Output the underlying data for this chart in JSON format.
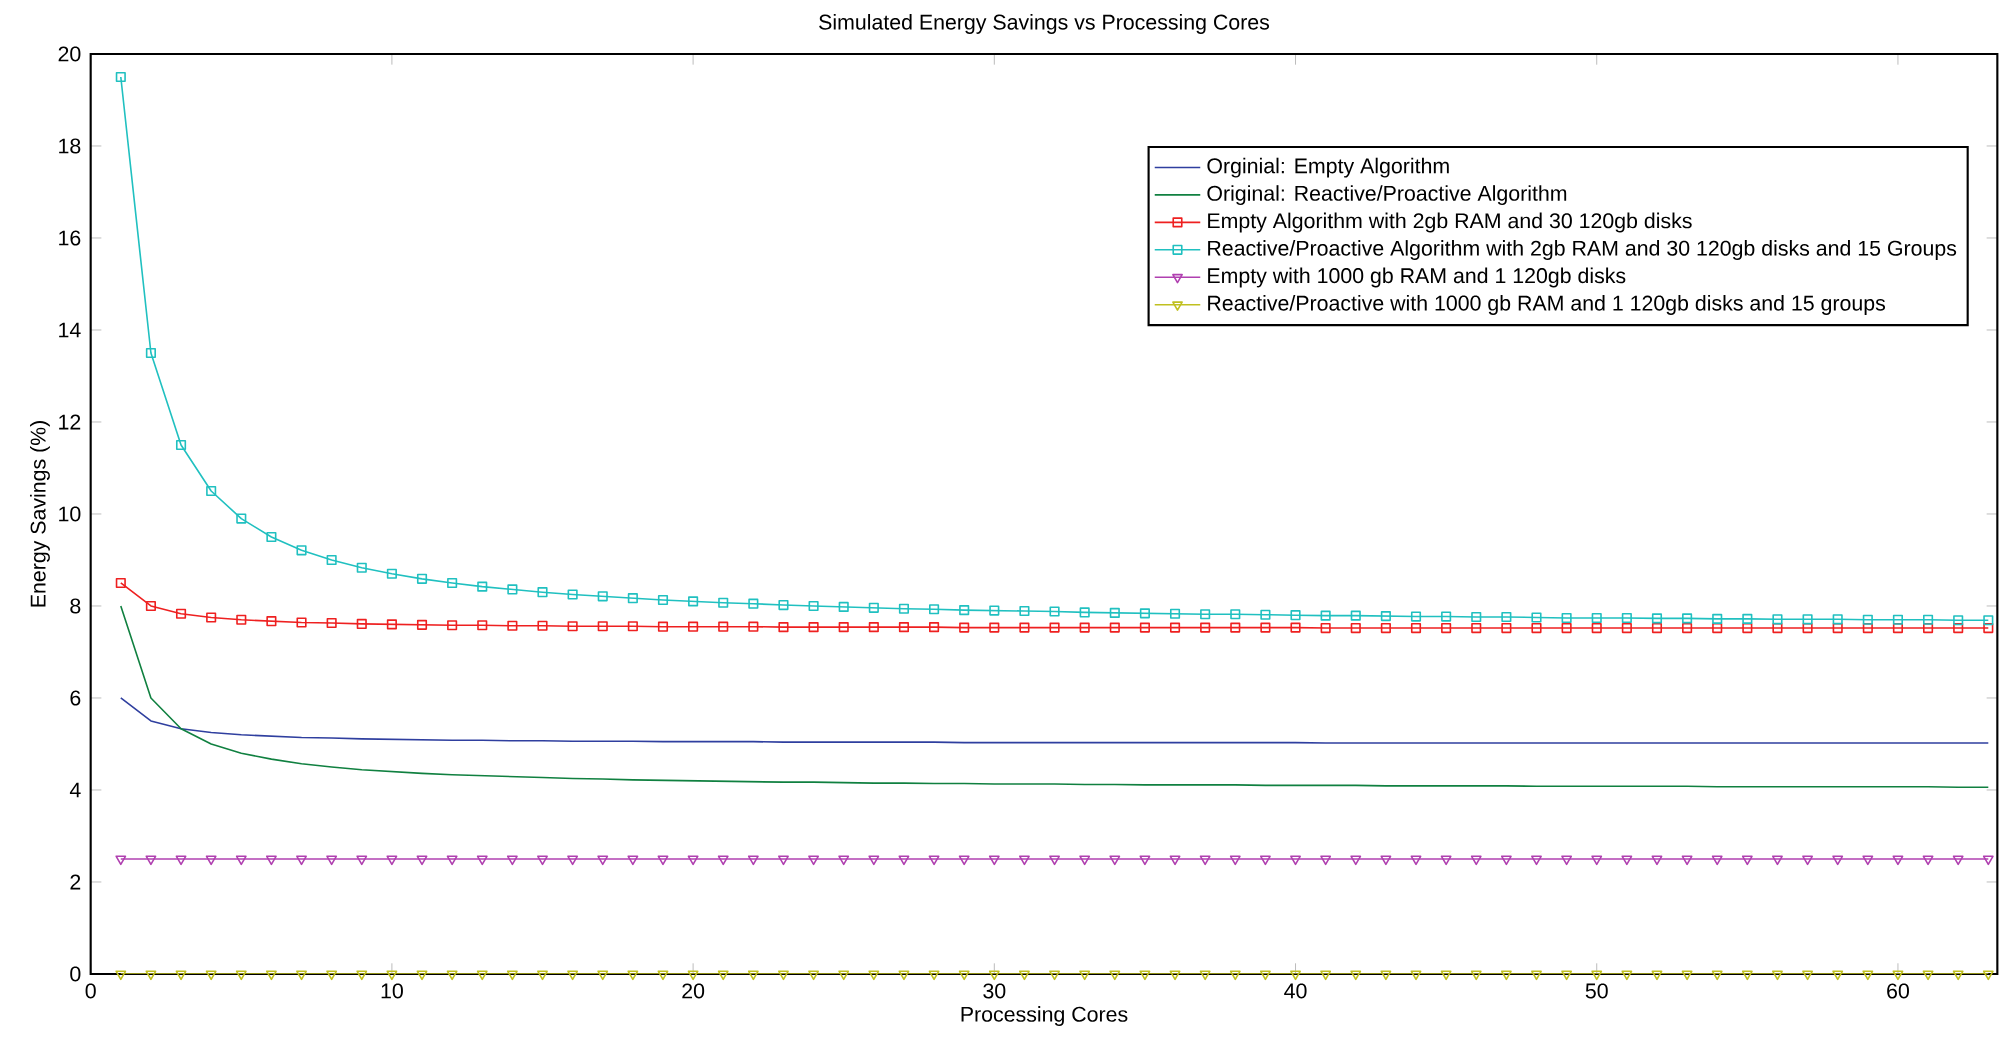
{
  "chart_data": {
    "type": "line",
    "title": "Simulated Energy Savings vs Processing Cores",
    "xlabel": "Processing Cores",
    "ylabel": "Energy Savings (%)",
    "x": [
      1,
      2,
      3,
      4,
      5,
      6,
      7,
      8,
      9,
      10,
      11,
      12,
      13,
      14,
      15,
      16,
      17,
      18,
      19,
      20,
      21,
      22,
      23,
      24,
      25,
      26,
      27,
      28,
      29,
      30,
      31,
      32,
      33,
      34,
      35,
      36,
      37,
      38,
      39,
      40,
      41,
      42,
      43,
      44,
      45,
      46,
      47,
      48,
      49,
      50,
      51,
      52,
      53,
      54,
      55,
      56,
      57,
      58,
      59,
      60,
      61,
      62,
      63
    ],
    "xlim": [
      0,
      63.3
    ],
    "xticks": [
      0,
      10,
      20,
      30,
      40,
      50,
      60
    ],
    "ylim": [
      0,
      20
    ],
    "yticks": [
      0,
      2,
      4,
      6,
      8,
      10,
      12,
      14,
      16,
      18,
      20
    ],
    "grid": false,
    "legend": "top right",
    "series": [
      {
        "name": "Orginial: Empty Algorithm",
        "color": "#2f3f9f",
        "marker": "none",
        "values": [
          6,
          5.5,
          5.33,
          5.25,
          5.2,
          5.17,
          5.14,
          5.13,
          5.11,
          5.1,
          5.09,
          5.08,
          5.08,
          5.07,
          5.07,
          5.06,
          5.06,
          5.06,
          5.05,
          5.05,
          5.05,
          5.05,
          5.04,
          5.04,
          5.04,
          5.04,
          5.04,
          5.04,
          5.03,
          5.03,
          5.03,
          5.03,
          5.03,
          5.03,
          5.03,
          5.03,
          5.03,
          5.03,
          5.03,
          5.03,
          5.02,
          5.02,
          5.02,
          5.02,
          5.02,
          5.02,
          5.02,
          5.02,
          5.02,
          5.02,
          5.02,
          5.02,
          5.02,
          5.02,
          5.02,
          5.02,
          5.02,
          5.02,
          5.02,
          5.02,
          5.02,
          5.02,
          5.02
        ]
      },
      {
        "name": "Original: Reactive/Proactive Algorithm",
        "color": "#108040",
        "marker": "none",
        "values": [
          8,
          6,
          5.33,
          5,
          4.8,
          4.67,
          4.57,
          4.5,
          4.44,
          4.4,
          4.36,
          4.33,
          4.31,
          4.29,
          4.27,
          4.25,
          4.24,
          4.22,
          4.21,
          4.2,
          4.19,
          4.18,
          4.17,
          4.17,
          4.16,
          4.15,
          4.15,
          4.14,
          4.14,
          4.13,
          4.13,
          4.13,
          4.12,
          4.12,
          4.11,
          4.11,
          4.11,
          4.11,
          4.1,
          4.1,
          4.1,
          4.1,
          4.09,
          4.09,
          4.09,
          4.09,
          4.09,
          4.08,
          4.08,
          4.08,
          4.08,
          4.08,
          4.08,
          4.07,
          4.07,
          4.07,
          4.07,
          4.07,
          4.07,
          4.07,
          4.07,
          4.06,
          4.06
        ]
      },
      {
        "name": "Empty Algorithm with 2gb RAM and 30 120gb disks",
        "color": "#ee2020",
        "marker": "square",
        "values": [
          8.5,
          8.0,
          7.83,
          7.75,
          7.7,
          7.67,
          7.64,
          7.63,
          7.61,
          7.6,
          7.59,
          7.58,
          7.58,
          7.57,
          7.57,
          7.56,
          7.56,
          7.56,
          7.55,
          7.55,
          7.55,
          7.55,
          7.54,
          7.54,
          7.54,
          7.54,
          7.54,
          7.54,
          7.53,
          7.53,
          7.53,
          7.53,
          7.53,
          7.53,
          7.53,
          7.53,
          7.53,
          7.53,
          7.53,
          7.53,
          7.52,
          7.52,
          7.52,
          7.52,
          7.52,
          7.52,
          7.52,
          7.52,
          7.52,
          7.52,
          7.52,
          7.52,
          7.52,
          7.52,
          7.52,
          7.52,
          7.52,
          7.52,
          7.52,
          7.52,
          7.52,
          7.52,
          7.52
        ]
      },
      {
        "name": "Reactive/Proactive Algorithm with 2gb RAM and 30 120gb disks and 15 Groups",
        "color": "#20c0c0",
        "marker": "square",
        "values": [
          19.5,
          13.5,
          11.5,
          10.5,
          9.9,
          9.5,
          9.21,
          9.0,
          8.83,
          8.7,
          8.59,
          8.5,
          8.42,
          8.36,
          8.3,
          8.25,
          8.21,
          8.17,
          8.13,
          8.1,
          8.07,
          8.05,
          8.02,
          8.0,
          7.98,
          7.96,
          7.94,
          7.93,
          7.91,
          7.9,
          7.89,
          7.88,
          7.86,
          7.85,
          7.84,
          7.83,
          7.82,
          7.82,
          7.81,
          7.8,
          7.79,
          7.79,
          7.78,
          7.77,
          7.77,
          7.76,
          7.76,
          7.75,
          7.74,
          7.74,
          7.74,
          7.73,
          7.73,
          7.72,
          7.72,
          7.71,
          7.71,
          7.71,
          7.7,
          7.7,
          7.7,
          7.69,
          7.69
        ]
      },
      {
        "name": "Empty with 1000 gb RAM and 1 120gb disks",
        "color": "#b040b0",
        "marker": "triangle",
        "values": [
          2.5,
          2.5,
          2.5,
          2.5,
          2.5,
          2.5,
          2.5,
          2.5,
          2.5,
          2.5,
          2.5,
          2.5,
          2.5,
          2.5,
          2.5,
          2.5,
          2.5,
          2.5,
          2.5,
          2.5,
          2.5,
          2.5,
          2.5,
          2.5,
          2.5,
          2.5,
          2.5,
          2.5,
          2.5,
          2.5,
          2.5,
          2.5,
          2.5,
          2.5,
          2.5,
          2.5,
          2.5,
          2.5,
          2.5,
          2.5,
          2.5,
          2.5,
          2.5,
          2.5,
          2.5,
          2.5,
          2.5,
          2.5,
          2.5,
          2.5,
          2.5,
          2.5,
          2.5,
          2.5,
          2.5,
          2.5,
          2.5,
          2.5,
          2.5,
          2.5,
          2.5,
          2.5,
          2.5
        ]
      },
      {
        "name": "Reactive/Proactive with 1000 gb RAM and 1 120gb disks and 15 groups",
        "color": "#c0c020",
        "marker": "triangle",
        "values": [
          0,
          0,
          0,
          0,
          0,
          0,
          0,
          0,
          0,
          0,
          0,
          0,
          0,
          0,
          0,
          0,
          0,
          0,
          0,
          0,
          0,
          0,
          0,
          0,
          0,
          0,
          0,
          0,
          0,
          0,
          0,
          0,
          0,
          0,
          0,
          0,
          0,
          0,
          0,
          0,
          0,
          0,
          0,
          0,
          0,
          0,
          0,
          0,
          0,
          0,
          0,
          0,
          0,
          0,
          0,
          0,
          0,
          0,
          0,
          0,
          0,
          0,
          0
        ]
      }
    ]
  }
}
